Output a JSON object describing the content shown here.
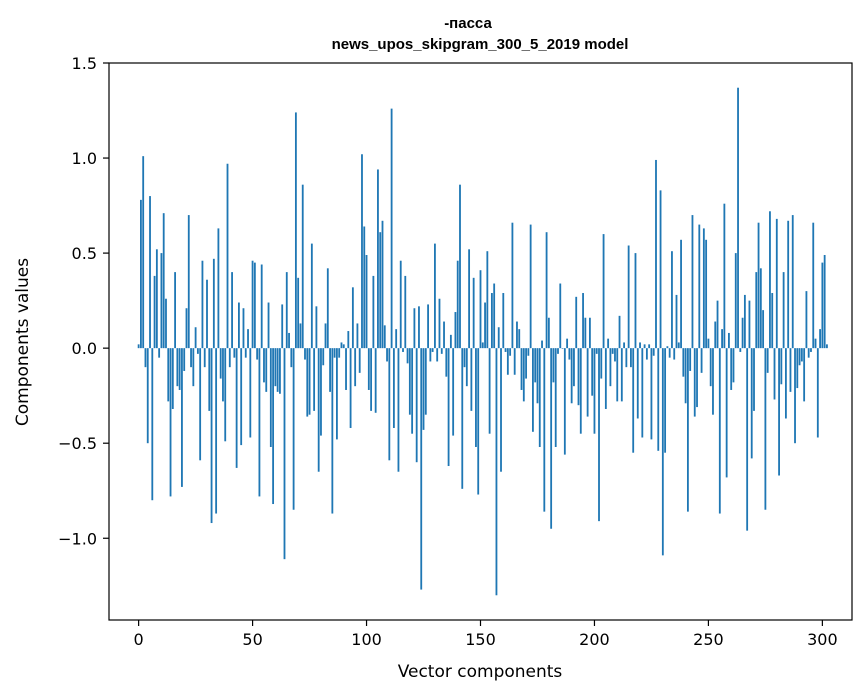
{
  "chart_data": {
    "type": "bar",
    "title": "-пасса",
    "subtitle": "news_upos_skipgram_300_5_2019 model",
    "xlabel": "Vector components",
    "ylabel": "Components values",
    "xlim": [
      -13,
      313
    ],
    "ylim": [
      -1.43,
      1.5
    ],
    "xticks": [
      0,
      50,
      100,
      150,
      200,
      250,
      300
    ],
    "yticks": [
      -1.0,
      -0.5,
      0.0,
      0.5,
      1.0,
      1.5
    ],
    "xtick_labels": [
      "0",
      "50",
      "100",
      "150",
      "200",
      "250",
      "300"
    ],
    "ytick_labels": [
      "−1.0",
      "−0.5",
      "0.0",
      "0.5",
      "1.0",
      "1.5"
    ],
    "grid": false,
    "bar_color": "#1f77b4",
    "values": [
      0.02,
      0.78,
      1.01,
      -0.1,
      -0.5,
      0.8,
      -0.8,
      0.38,
      0.52,
      -0.05,
      0.5,
      0.71,
      0.26,
      -0.28,
      -0.78,
      -0.32,
      0.4,
      -0.2,
      -0.22,
      -0.73,
      -0.12,
      0.21,
      0.7,
      -0.1,
      -0.2,
      0.11,
      -0.03,
      -0.59,
      0.46,
      -0.1,
      0.36,
      -0.33,
      -0.92,
      0.47,
      -0.87,
      0.63,
      -0.16,
      -0.28,
      -0.49,
      0.97,
      -0.1,
      0.4,
      -0.05,
      -0.63,
      0.24,
      -0.51,
      0.21,
      -0.05,
      0.1,
      -0.47,
      0.46,
      0.45,
      -0.06,
      -0.78,
      0.44,
      -0.18,
      -0.23,
      0.24,
      -0.52,
      -0.82,
      -0.2,
      -0.23,
      -0.24,
      0.23,
      -1.11,
      0.4,
      0.08,
      -0.1,
      -0.85,
      1.24,
      0.37,
      0.13,
      0.86,
      -0.06,
      -0.36,
      -0.35,
      0.55,
      -0.33,
      0.22,
      -0.65,
      -0.46,
      -0.09,
      0.13,
      0.42,
      -0.23,
      -0.87,
      -0.05,
      -0.48,
      -0.05,
      0.03,
      0.02,
      -0.22,
      0.09,
      -0.42,
      0.32,
      -0.2,
      0.13,
      -0.13,
      1.02,
      0.64,
      0.49,
      -0.22,
      -0.33,
      0.38,
      -0.34,
      0.94,
      0.61,
      0.67,
      0.12,
      -0.07,
      -0.59,
      1.26,
      -0.42,
      0.1,
      -0.65,
      0.46,
      -0.02,
      0.38,
      -0.08,
      -0.35,
      -0.45,
      0.21,
      -0.6,
      0.22,
      -1.27,
      -0.43,
      -0.35,
      0.23,
      -0.07,
      -0.02,
      0.55,
      -0.07,
      0.26,
      -0.03,
      0.14,
      -0.15,
      -0.62,
      0.07,
      -0.46,
      0.19,
      0.46,
      0.86,
      -0.74,
      -0.1,
      -0.2,
      0.52,
      -0.33,
      0.37,
      -0.52,
      -0.77,
      0.41,
      0.03,
      0.24,
      0.51,
      -0.45,
      0.29,
      0.34,
      -1.3,
      0.11,
      -0.65,
      0.29,
      -0.02,
      -0.14,
      -0.04,
      0.66,
      -0.14,
      0.14,
      0.1,
      -0.22,
      -0.28,
      -0.16,
      -0.04,
      0.65,
      -0.44,
      -0.18,
      -0.29,
      -0.52,
      0.04,
      -0.86,
      0.61,
      0.16,
      -0.95,
      -0.18,
      -0.52,
      -0.03,
      0.34,
      0.0,
      -0.56,
      0.05,
      -0.06,
      -0.29,
      -0.2,
      0.27,
      -0.3,
      -0.45,
      0.29,
      0.16,
      -0.36,
      0.16,
      -0.25,
      -0.45,
      -0.03,
      -0.91,
      -0.16,
      0.6,
      -0.32,
      0.05,
      -0.2,
      -0.03,
      -0.07,
      -0.28,
      0.17,
      -0.28,
      0.03,
      -0.1,
      0.54,
      -0.1,
      -0.55,
      0.5,
      -0.37,
      0.03,
      -0.47,
      0.02,
      -0.06,
      0.02,
      -0.48,
      -0.04,
      0.99,
      -0.54,
      0.83,
      -1.09,
      -0.55,
      0.01,
      -0.05,
      0.51,
      -0.06,
      0.28,
      0.03,
      0.57,
      -0.15,
      -0.29,
      -0.86,
      -0.12,
      0.7,
      -0.36,
      -0.31,
      0.65,
      -0.13,
      0.63,
      0.57,
      0.05,
      -0.2,
      -0.35,
      0.14,
      0.25,
      -0.87,
      0.1,
      0.76,
      -0.68,
      0.08,
      -0.22,
      -0.18,
      0.5,
      1.37,
      -0.02,
      0.16,
      0.28,
      -0.96,
      0.25,
      -0.58,
      -0.33,
      0.4,
      0.66,
      0.42,
      0.2,
      -0.85,
      -0.13,
      0.72,
      0.29,
      -0.27,
      0.68,
      -0.67,
      -0.19,
      0.4,
      -0.37,
      0.67,
      -0.23,
      0.7,
      -0.5,
      -0.21,
      -0.09,
      -0.07,
      -0.28,
      0.3,
      -0.05,
      -0.02,
      0.66,
      0.05,
      -0.47,
      0.1,
      0.45,
      0.49,
      0.02
    ]
  }
}
